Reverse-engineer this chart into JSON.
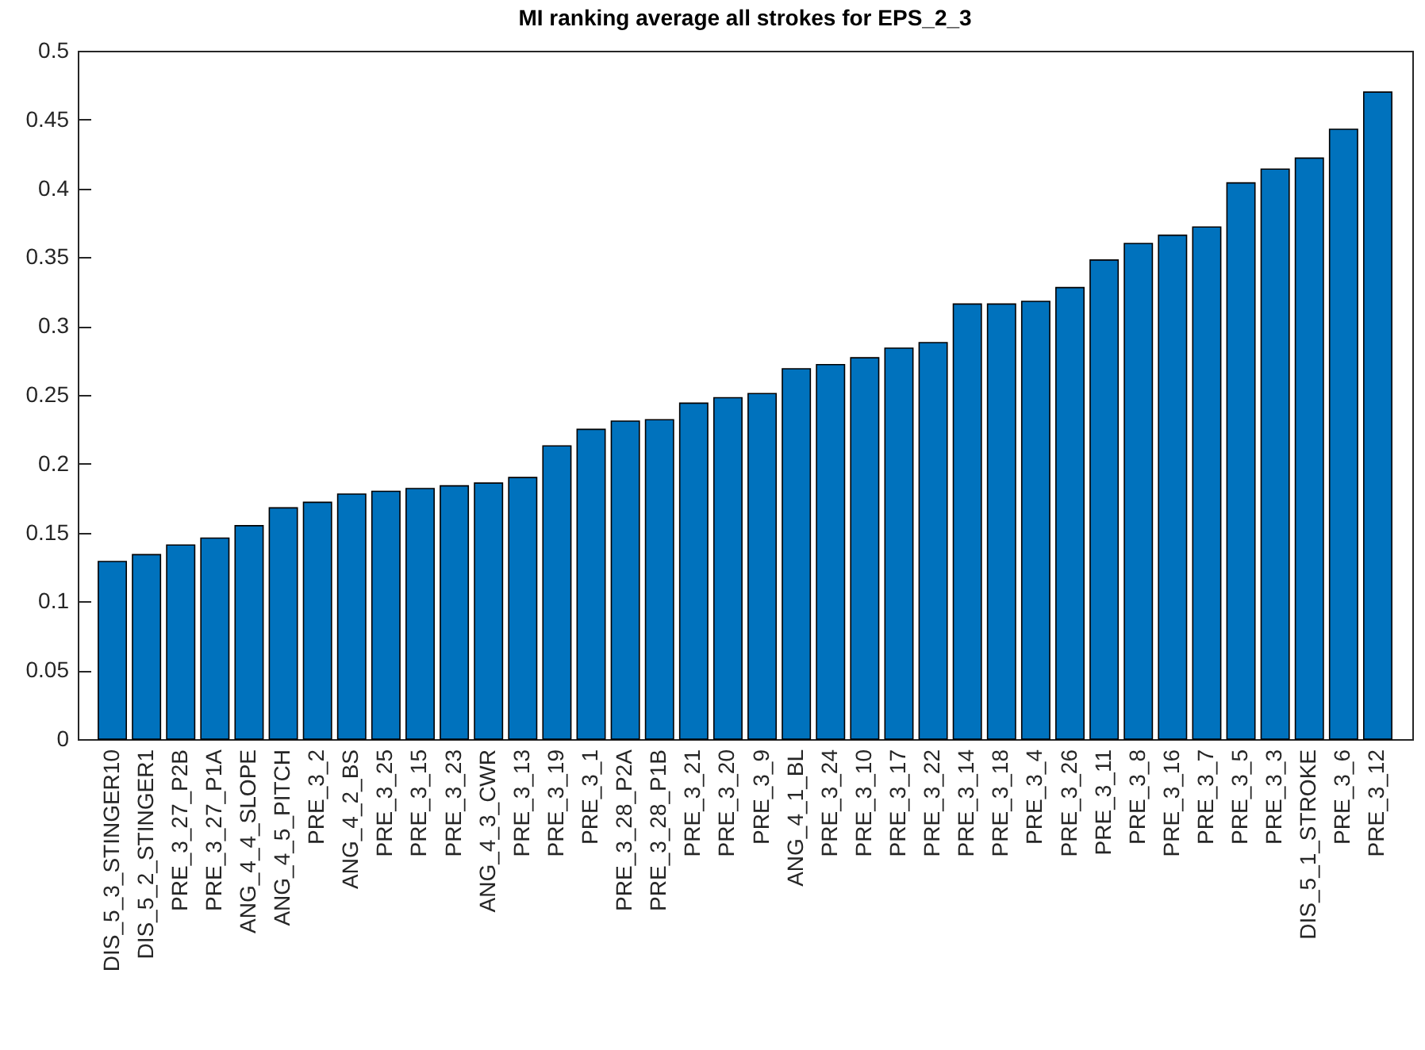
{
  "chart_data": {
    "type": "bar",
    "title": "MI ranking average all strokes for EPS_2_3",
    "categories": [
      "DIS_5_3_STINGER10",
      "DIS_5_2_STINGER1",
      "PRE_3_27_P2B",
      "PRE_3_27_P1A",
      "ANG_4_4_SLOPE",
      "ANG_4_5_PITCH",
      "PRE_3_2",
      "ANG_4_2_BS",
      "PRE_3_25",
      "PRE_3_15",
      "PRE_3_23",
      "ANG_4_3_CWR",
      "PRE_3_13",
      "PRE_3_19",
      "PRE_3_1",
      "PRE_3_28_P2A",
      "PRE_3_28_P1B",
      "PRE_3_21",
      "PRE_3_20",
      "PRE_3_9",
      "ANG_4_1_BL",
      "PRE_3_24",
      "PRE_3_10",
      "PRE_3_17",
      "PRE_3_22",
      "PRE_3_14",
      "PRE_3_18",
      "PRE_3_4",
      "PRE_3_26",
      "PRE_3_11",
      "PRE_3_8",
      "PRE_3_16",
      "PRE_3_7",
      "PRE_3_5",
      "PRE_3_3",
      "DIS_5_1_STROKE",
      "PRE_3_6",
      "PRE_3_12"
    ],
    "values": [
      0.129,
      0.134,
      0.141,
      0.146,
      0.155,
      0.168,
      0.172,
      0.178,
      0.18,
      0.182,
      0.184,
      0.186,
      0.19,
      0.213,
      0.225,
      0.231,
      0.232,
      0.244,
      0.248,
      0.251,
      0.269,
      0.272,
      0.277,
      0.284,
      0.288,
      0.316,
      0.316,
      0.318,
      0.328,
      0.348,
      0.36,
      0.366,
      0.372,
      0.404,
      0.414,
      0.422,
      0.443,
      0.47
    ],
    "color": "#0072bd",
    "ylim": [
      0,
      0.5
    ],
    "yticks": [
      0,
      0.05,
      0.1,
      0.15,
      0.2,
      0.25,
      0.3,
      0.35,
      0.4,
      0.45,
      0.5
    ]
  }
}
